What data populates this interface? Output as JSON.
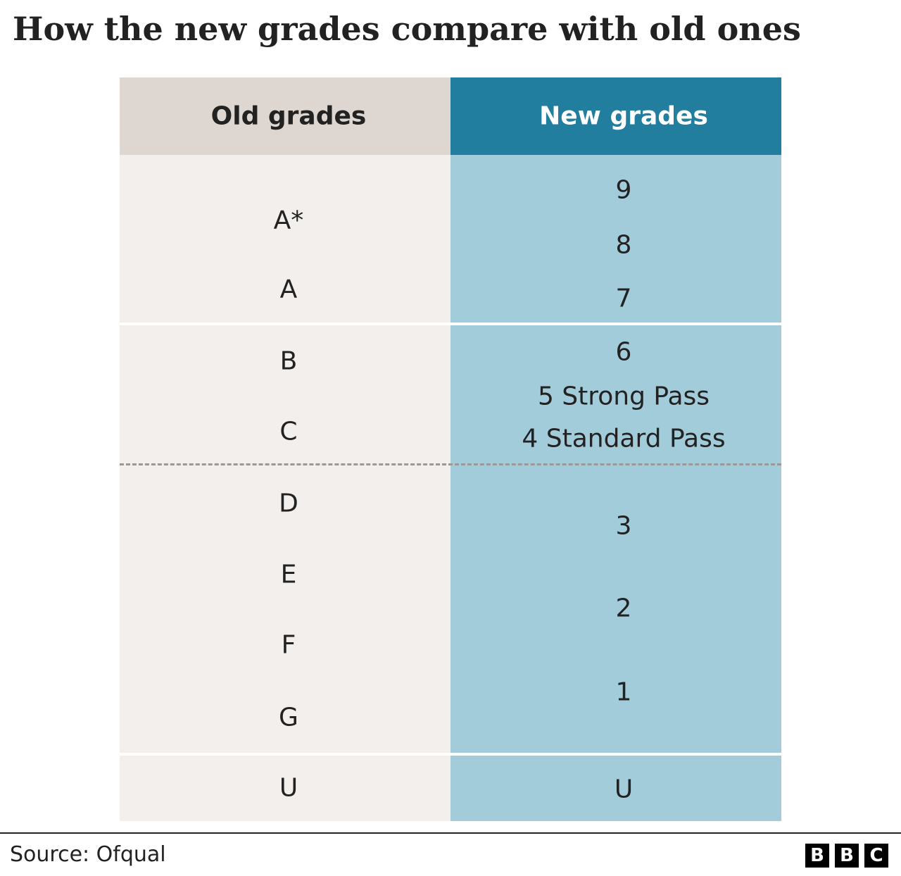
{
  "title": "How the new grades compare with old ones",
  "table": {
    "headers": [
      "Old grades",
      "New grades"
    ],
    "old_grades": [
      "A*",
      "A",
      "B",
      "C",
      "D",
      "E",
      "F",
      "G",
      "U"
    ],
    "new_grades": [
      "9",
      "8",
      "7",
      "6",
      "5 Strong Pass",
      "4 Standard Pass",
      "3",
      "2",
      "1",
      "U"
    ]
  },
  "source": "Source: Ofqual",
  "logo": [
    "B",
    "B",
    "C"
  ]
}
